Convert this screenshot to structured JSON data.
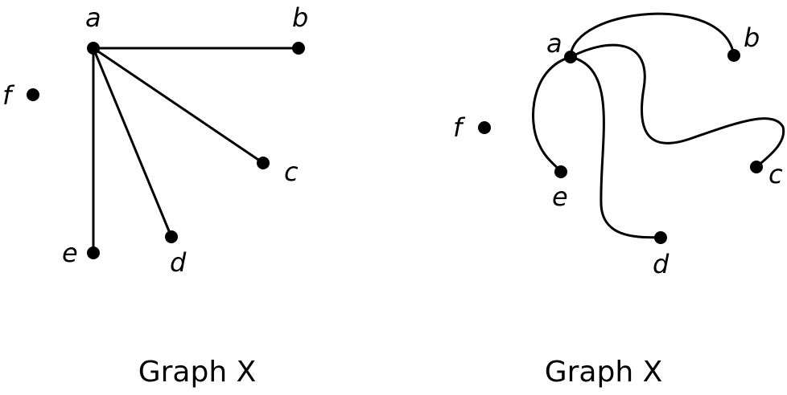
{
  "graphs": [
    {
      "caption": "Graph X",
      "vertices": [
        "a",
        "b",
        "c",
        "d",
        "e",
        "f"
      ],
      "edges": [
        [
          "a",
          "b"
        ],
        [
          "a",
          "c"
        ],
        [
          "a",
          "d"
        ],
        [
          "a",
          "e"
        ]
      ],
      "edge_style": "straight"
    },
    {
      "caption": "Graph X",
      "vertices": [
        "a",
        "b",
        "c",
        "d",
        "e",
        "f"
      ],
      "edges": [
        [
          "a",
          "b"
        ],
        [
          "a",
          "c"
        ],
        [
          "a",
          "d"
        ],
        [
          "a",
          "e"
        ]
      ],
      "edge_style": "curved"
    }
  ],
  "colors": {
    "stroke": "#000000",
    "background": "#ffffff"
  }
}
